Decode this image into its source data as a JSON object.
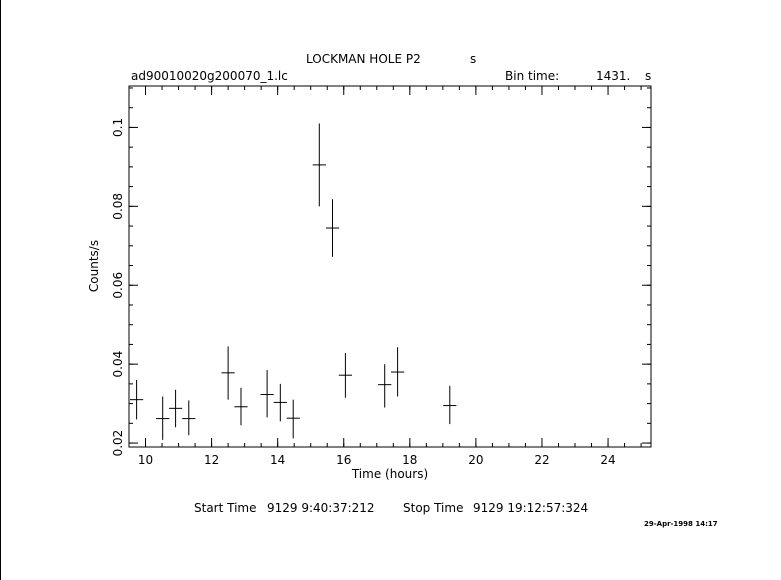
{
  "header": {
    "object_name": "LOCKMAN HOLE P2",
    "object_suffix": "s",
    "file_name": "ad90010020g200070_1.lc",
    "bin_time_label": "Bin time:",
    "bin_time_value": "1431.",
    "bin_time_unit": "s"
  },
  "footer": {
    "start_label": "Start Time",
    "start_value": "9129  9:40:37:212",
    "stop_label": "Stop Time",
    "stop_value": "9129 19:12:57:324",
    "timestamp": "29-Apr-1998 14:17"
  },
  "chart_data": {
    "type": "scatter",
    "title": "LOCKMAN HOLE P2",
    "xlabel": "Time (hours)",
    "ylabel": "Counts/s",
    "xlim": [
      9.5,
      25.3
    ],
    "ylim": [
      0.019,
      0.1105
    ],
    "x_ticks": [
      10,
      12,
      14,
      16,
      18,
      20,
      22,
      24
    ],
    "y_ticks": [
      0.02,
      0.04,
      0.06,
      0.08,
      0.1
    ],
    "y_tick_labels": [
      "0.02",
      "0.04",
      "0.06",
      "0.08",
      "0.1"
    ],
    "x_minor_step": 0.5,
    "y_minor_step": 0.005,
    "grid": false,
    "series": [
      {
        "points": [
          {
            "x": 9.73,
            "y": 0.031,
            "xerr": 0.2,
            "ylo": 0.026,
            "yhi": 0.036
          },
          {
            "x": 10.52,
            "y": 0.0262,
            "xerr": 0.2,
            "ylo": 0.0208,
            "yhi": 0.0318
          },
          {
            "x": 10.91,
            "y": 0.0288,
            "xerr": 0.2,
            "ylo": 0.024,
            "yhi": 0.0335
          },
          {
            "x": 11.31,
            "y": 0.0262,
            "xerr": 0.2,
            "ylo": 0.022,
            "yhi": 0.0308
          },
          {
            "x": 12.5,
            "y": 0.0378,
            "xerr": 0.2,
            "ylo": 0.031,
            "yhi": 0.0445
          },
          {
            "x": 12.89,
            "y": 0.0292,
            "xerr": 0.2,
            "ylo": 0.0245,
            "yhi": 0.034
          },
          {
            "x": 13.68,
            "y": 0.0323,
            "xerr": 0.2,
            "ylo": 0.0265,
            "yhi": 0.0385
          },
          {
            "x": 14.08,
            "y": 0.0303,
            "xerr": 0.2,
            "ylo": 0.0255,
            "yhi": 0.035
          },
          {
            "x": 14.47,
            "y": 0.0263,
            "xerr": 0.2,
            "ylo": 0.0212,
            "yhi": 0.031
          },
          {
            "x": 15.26,
            "y": 0.0905,
            "xerr": 0.2,
            "ylo": 0.08,
            "yhi": 0.101
          },
          {
            "x": 15.66,
            "y": 0.0745,
            "xerr": 0.2,
            "ylo": 0.0672,
            "yhi": 0.0818
          },
          {
            "x": 16.05,
            "y": 0.0372,
            "xerr": 0.2,
            "ylo": 0.0315,
            "yhi": 0.0428
          },
          {
            "x": 17.24,
            "y": 0.0348,
            "xerr": 0.2,
            "ylo": 0.029,
            "yhi": 0.04
          },
          {
            "x": 17.63,
            "y": 0.038,
            "xerr": 0.2,
            "ylo": 0.0318,
            "yhi": 0.0443
          },
          {
            "x": 19.21,
            "y": 0.0295,
            "xerr": 0.2,
            "ylo": 0.0248,
            "yhi": 0.0345
          }
        ]
      }
    ]
  }
}
